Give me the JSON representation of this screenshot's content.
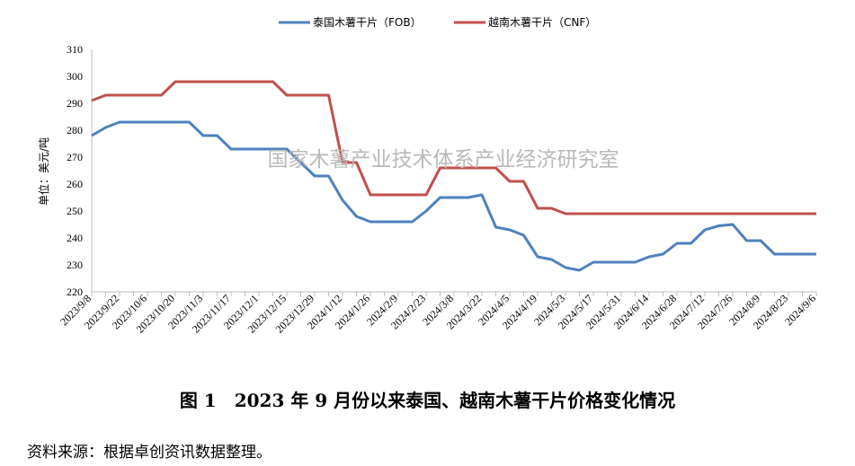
{
  "chart_data": {
    "type": "line",
    "categories": [
      "2023/9/8",
      "2023/9/15",
      "2023/9/22",
      "2023/9/29",
      "2023/10/6",
      "2023/10/13",
      "2023/10/20",
      "2023/10/27",
      "2023/11/3",
      "2023/11/10",
      "2023/11/17",
      "2023/11/24",
      "2023/12/1",
      "2023/12/8",
      "2023/12/15",
      "2023/12/22",
      "2023/12/29",
      "2024/1/5",
      "2024/1/12",
      "2024/1/19",
      "2024/1/26",
      "2024/2/2",
      "2024/2/9",
      "2024/2/16",
      "2024/2/23",
      "2024/3/1",
      "2024/3/8",
      "2024/3/15",
      "2024/3/22",
      "2024/3/29",
      "2024/4/5",
      "2024/4/12",
      "2024/4/19",
      "2024/4/26",
      "2024/5/3",
      "2024/5/10",
      "2024/5/17",
      "2024/5/24",
      "2024/5/31",
      "2024/6/7",
      "2024/6/14",
      "2024/6/21",
      "2024/6/28",
      "2024/7/5",
      "2024/7/12",
      "2024/7/19",
      "2024/7/26",
      "2024/8/2",
      "2024/8/9",
      "2024/8/16",
      "2024/8/23",
      "2024/8/30",
      "2024/9/6"
    ],
    "tick_labels": [
      "2023/9/8",
      "2023/9/22",
      "2023/10/6",
      "2023/10/20",
      "2023/11/3",
      "2023/11/17",
      "2023/12/1",
      "2023/12/15",
      "2023/12/29",
      "2024/1/12",
      "2024/1/26",
      "2024/2/9",
      "2024/2/23",
      "2024/3/8",
      "2024/3/22",
      "2024/4/5",
      "2024/4/19",
      "2024/5/3",
      "2024/5/17",
      "2024/5/31",
      "2024/6/14",
      "2024/6/28",
      "2024/7/12",
      "2024/7/26",
      "2024/8/9",
      "2024/8/23",
      "2024/9/6"
    ],
    "series": [
      {
        "name": "泰国木薯干片（FOB）",
        "color": "#4f81bd",
        "values": [
          278,
          281,
          283,
          283,
          283,
          283,
          283,
          283,
          278,
          278,
          273,
          273,
          273,
          273,
          273,
          268,
          263,
          263,
          254,
          248,
          246,
          246,
          246,
          246,
          250,
          255,
          255,
          255,
          256,
          244,
          243,
          241,
          233,
          232,
          229,
          228,
          231,
          231,
          231,
          231,
          233,
          234,
          238,
          238,
          243,
          244.5,
          245,
          239,
          239,
          234,
          234,
          234,
          234
        ]
      },
      {
        "name": "越南木薯干片（CNF）",
        "color": "#c0504d",
        "values": [
          291,
          293,
          293,
          293,
          293,
          293,
          298,
          298,
          298,
          298,
          298,
          298,
          298,
          298,
          293,
          293,
          293,
          293,
          268,
          268,
          256,
          256,
          256,
          256,
          256,
          266,
          266,
          266,
          266,
          266,
          261,
          261,
          251,
          251,
          249,
          249,
          249,
          249,
          249,
          249,
          249,
          249,
          249,
          249,
          249,
          249,
          249,
          249,
          249,
          249,
          249,
          249,
          249
        ]
      }
    ],
    "ylabel": "单位：美元/吨",
    "ylim": [
      220,
      310
    ],
    "yticks": [
      220,
      230,
      240,
      250,
      260,
      270,
      280,
      290,
      300,
      310
    ],
    "grid": false,
    "legend": "top-center",
    "watermark": "国家木薯产业技术体系产业经济研究室"
  },
  "caption": "图 1　2023 年 9 月份以来泰国、越南木薯干片价格变化情况",
  "source": "资料来源：根据卓创资讯数据整理。"
}
